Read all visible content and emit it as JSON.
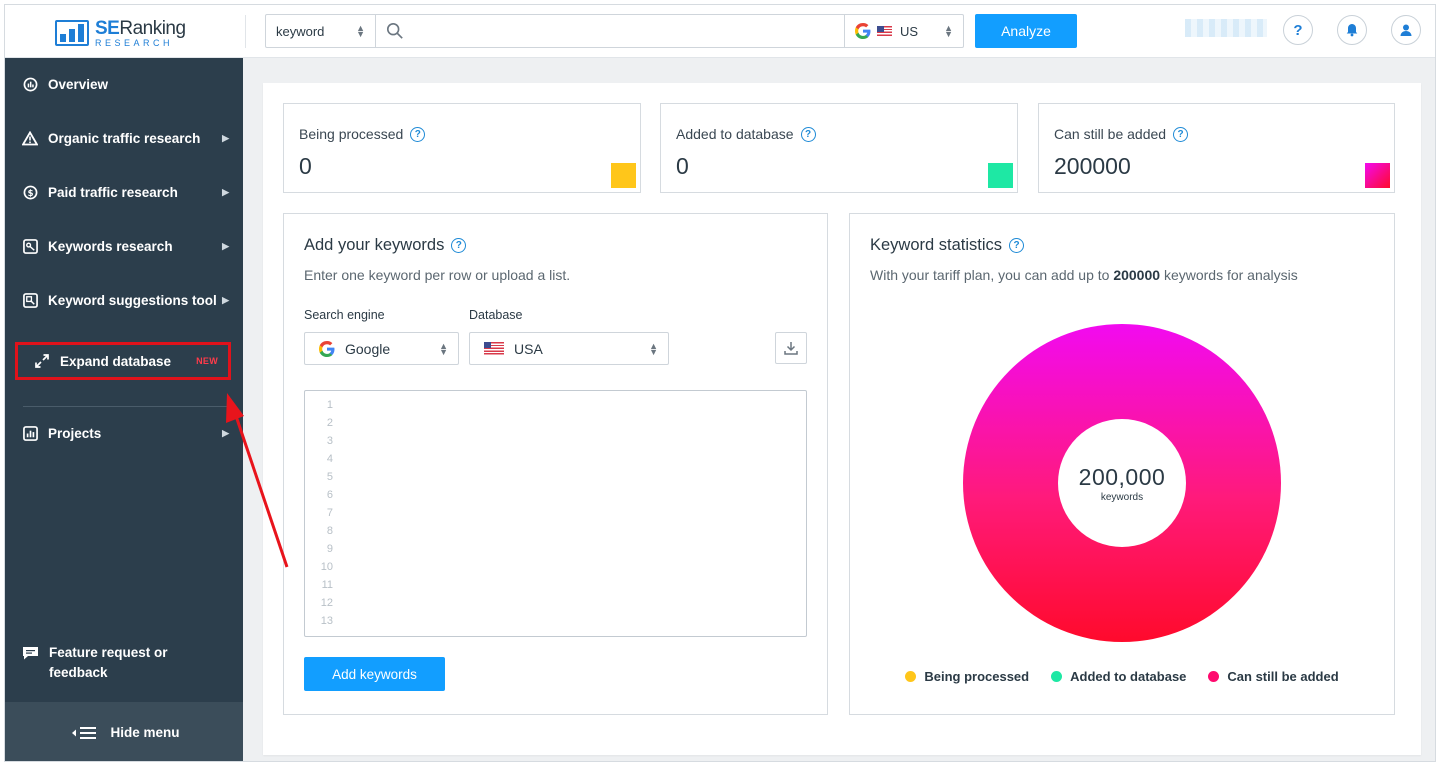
{
  "header": {
    "logo_main": "SE",
    "logo_main_2": "Ranking",
    "logo_sub": "RESEARCH",
    "search_type": "keyword",
    "search_placeholder": "",
    "region_code": "US",
    "analyze_label": "Analyze",
    "help_label": "?"
  },
  "sidebar": {
    "items": [
      {
        "label": "Overview",
        "icon": "overview-icon",
        "arrow": ""
      },
      {
        "label": "Organic traffic research",
        "icon": "warning-triangle-icon",
        "arrow": "▶"
      },
      {
        "label": "Paid traffic research",
        "icon": "dollar-icon",
        "arrow": "▶"
      },
      {
        "label": "Keywords research",
        "icon": "key-icon",
        "arrow": "▶"
      },
      {
        "label": "Keyword suggestions tool",
        "icon": "suggestions-icon",
        "arrow": "▶"
      }
    ],
    "expand": {
      "label": "Expand database",
      "badge": "NEW"
    },
    "projects": {
      "label": "Projects",
      "arrow": "▶"
    },
    "feedback_line1": "Feature request or",
    "feedback_line2": "feedback",
    "hide_menu": "Hide menu"
  },
  "stats": [
    {
      "label": "Being processed",
      "value": "0",
      "color": "#ffc61a"
    },
    {
      "label": "Added to database",
      "value": "0",
      "color": "#1ee8a4"
    },
    {
      "label": "Can still be added",
      "value": "200000",
      "color": "#ff0a6e"
    }
  ],
  "add_panel": {
    "title": "Add your keywords",
    "subtitle": "Enter one keyword per row or upload a list.",
    "engine_label": "Search engine",
    "engine_value": "Google",
    "database_label": "Database",
    "database_value": "USA",
    "line_numbers": [
      "1",
      "2",
      "3",
      "4",
      "5",
      "6",
      "7",
      "8",
      "9",
      "10",
      "11",
      "12",
      "13"
    ],
    "add_button": "Add keywords"
  },
  "stats_panel": {
    "title": "Keyword statistics",
    "subtitle_pre": "With your tariff plan, you can add up to",
    "subtitle_num": "200000",
    "subtitle_post": "keywords for analysis",
    "center_value": "200,000",
    "center_label": "keywords",
    "legend": [
      {
        "label": "Being processed",
        "color": "#ffc61a"
      },
      {
        "label": "Added to database",
        "color": "#1ee8a4"
      },
      {
        "label": "Can still be added",
        "color": "#ff0a6e"
      }
    ]
  },
  "chart_data": {
    "type": "pie",
    "categories": [
      "Being processed",
      "Added to database",
      "Can still be added"
    ],
    "values": [
      0,
      0,
      200000
    ]
  }
}
